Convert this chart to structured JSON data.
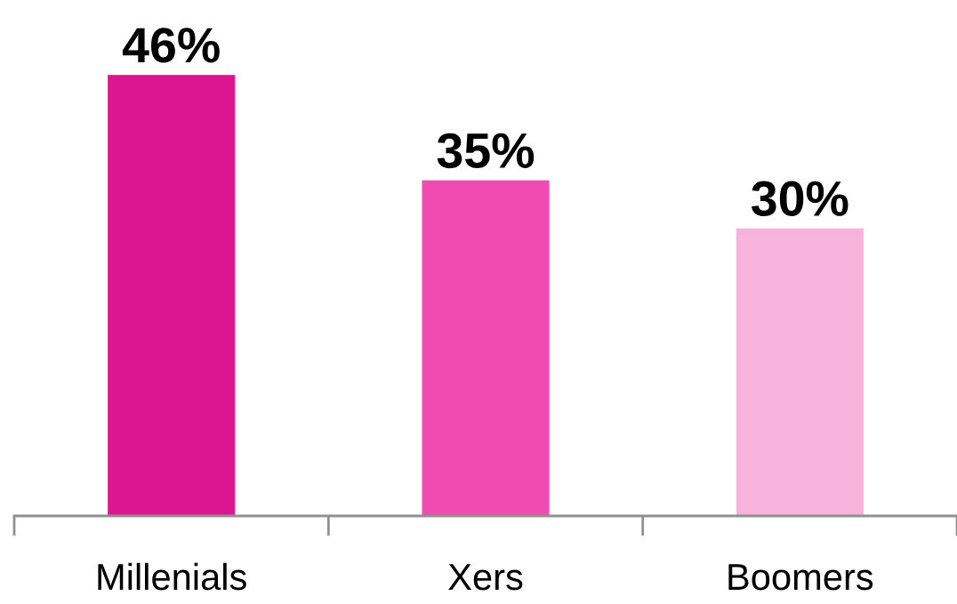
{
  "chart_data": {
    "type": "bar",
    "categories": [
      "Millenials",
      "Xers",
      "Boomers"
    ],
    "values": [
      46,
      35,
      30
    ],
    "colors": [
      "#dc1690",
      "#f04bb0",
      "#f7b3dc"
    ],
    "value_labels": [
      "46%",
      "35%",
      "30%"
    ],
    "tick_labels": "x",
    "grid": false,
    "legend": false
  }
}
